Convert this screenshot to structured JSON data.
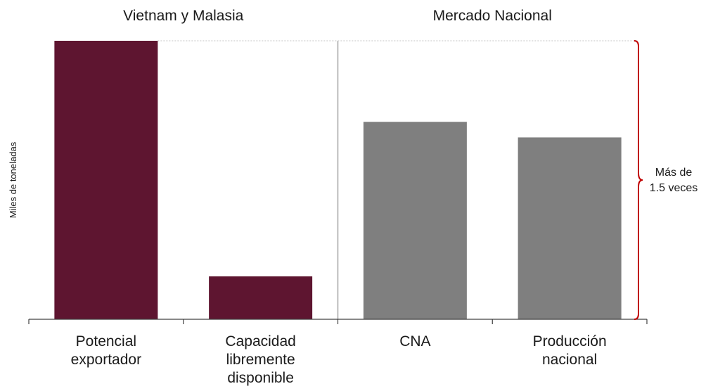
{
  "chart_data": {
    "type": "bar",
    "ylabel": "Miles de toneladas",
    "ylim": [
      0,
      100
    ],
    "grid": false,
    "groups": [
      {
        "title": "Vietnam y Malasia",
        "categories": [
          0,
          1
        ]
      },
      {
        "title": "Mercado Nacional",
        "categories": [
          2,
          3
        ]
      }
    ],
    "categories": [
      {
        "lines": [
          "Potencial",
          "exportador"
        ]
      },
      {
        "lines": [
          "Capacidad",
          "libremente",
          "disponible"
        ]
      },
      {
        "lines": [
          "CNA"
        ]
      },
      {
        "lines": [
          "Producción",
          "nacional"
        ]
      }
    ],
    "values": [
      100,
      15.4,
      70.9,
      65.3
    ],
    "colors": [
      "#5e1530",
      "#5e1530",
      "#7f7f7f",
      "#7f7f7f"
    ],
    "annotation": {
      "lines": [
        "Más de",
        "1.5 veces"
      ],
      "color": "#c00000"
    }
  }
}
